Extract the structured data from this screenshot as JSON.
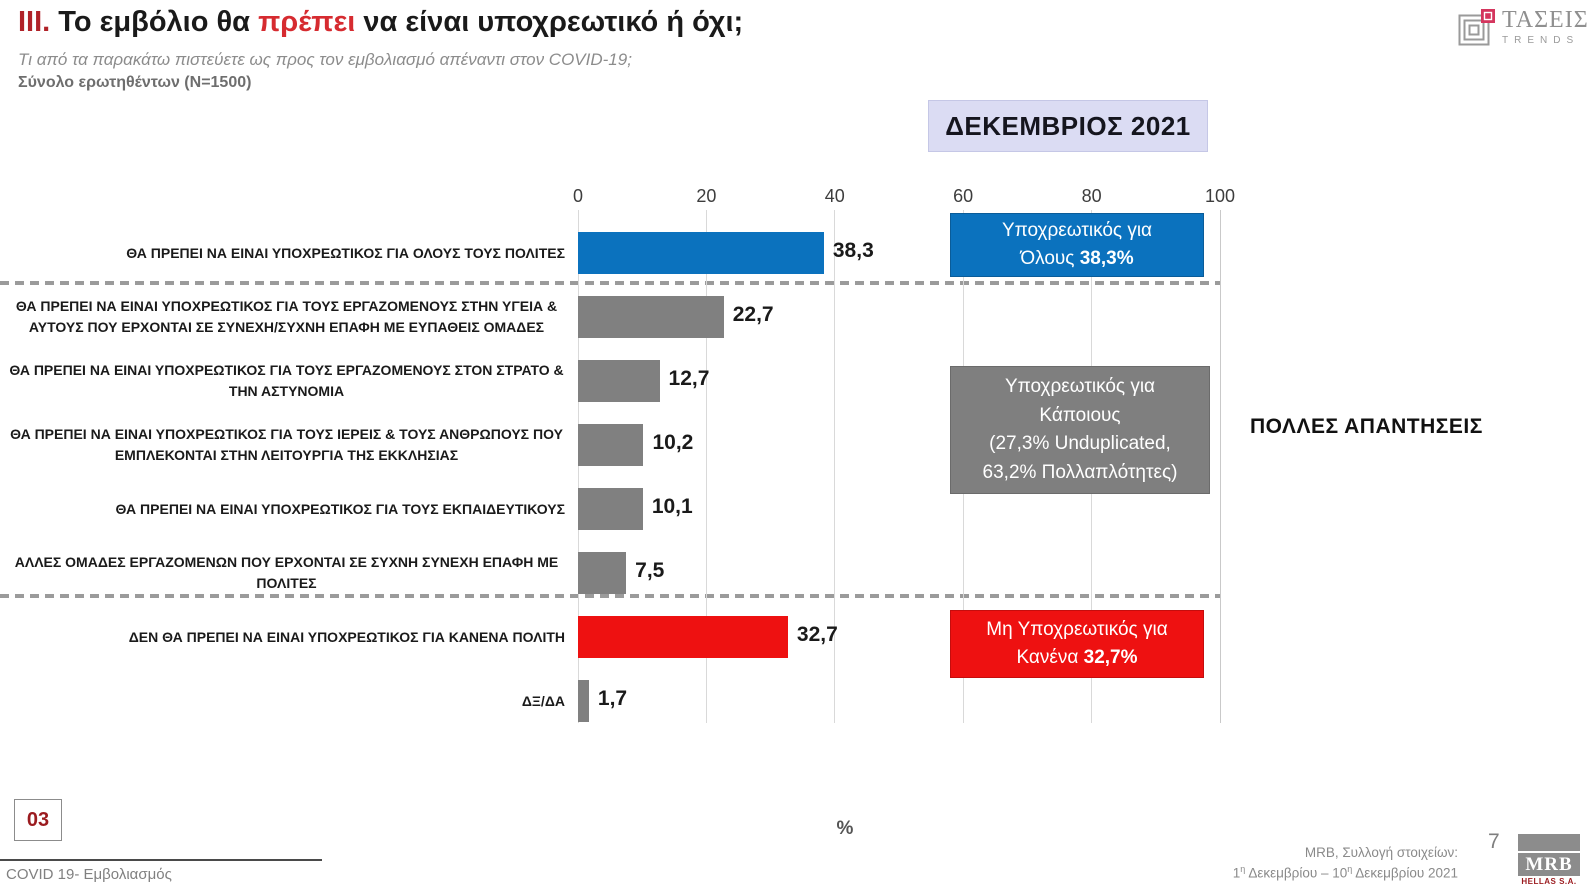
{
  "header": {
    "title_roman": "III.",
    "title_part1": " Το εμβόλιο θα ",
    "title_highlight": "πρέπει",
    "title_part2": " να είναι υποχρεωτικό ή όχι;",
    "subtitle": "Τι από τα παρακάτω πιστεύετε ως προς τον εμβολιασμό απέναντι στον COVID-19;",
    "sample": "Σύνολο ερωτηθέντων (N=1500)"
  },
  "tasis_logo": {
    "name": "ΤΑΣΕΙΣ",
    "sub": "TRENDS"
  },
  "period_label": "ΔΕΚΕΜΒΡΙΟΣ 2021",
  "chart_data": {
    "type": "bar",
    "orientation": "horizontal",
    "xlabel": "%",
    "xlim": [
      0,
      100
    ],
    "x_ticks": [
      0,
      20,
      40,
      60,
      80,
      100
    ],
    "grid": true,
    "categories": [
      "ΘΑ ΠΡΕΠΕΙ ΝΑ ΕΙΝΑΙ ΥΠΟΧΡΕΩΤΙΚΟΣ ΓΙΑ ΟΛΟΥΣ ΤΟΥΣ ΠΟΛΙΤΕΣ",
      "ΘΑ ΠΡΕΠΕΙ ΝΑ ΕΙΝΑΙ ΥΠΟΧΡΕΩΤΙΚΟΣ ΓΙΑ ΤΟΥΣ ΕΡΓΑΖΟΜΕΝΟΥΣ ΣΤΗΝ ΥΓΕΙΑ & ΑΥΤΟΥΣ ΠΟΥ ΕΡΧΟΝΤΑΙ ΣΕ ΣΥΝΕΧΗ/ΣΥΧΝΗ ΕΠΑΦΗ ΜΕ ΕΥΠΑΘΕΙΣ ΟΜΑΔΕΣ",
      "ΘΑ ΠΡΕΠΕΙ ΝΑ ΕΙΝΑΙ ΥΠΟΧΡΕΩΤΙΚΟΣ ΓΙΑ ΤΟΥΣ ΕΡΓΑΖΟΜΕΝΟΥΣ ΣΤΟΝ ΣΤΡΑΤΟ & ΤΗΝ ΑΣΤΥΝΟΜΙΑ",
      "ΘΑ ΠΡΕΠΕΙ ΝΑ ΕΙΝΑΙ ΥΠΟΧΡΕΩΤΙΚΟΣ ΓΙΑ ΤΟΥΣ ΙΕΡΕΙΣ & ΤΟΥΣ ΑΝΘΡΩΠΟΥΣ ΠΟΥ ΕΜΠΛΕΚΟΝΤΑΙ ΣΤΗΝ ΛΕΙΤΟΥΡΓΙΑ ΤΗΣ ΕΚΚΛΗΣΙΑΣ",
      "ΘΑ ΠΡΕΠΕΙ ΝΑ ΕΙΝΑΙ ΥΠΟΧΡΕΩΤΙΚΟΣ ΓΙΑ ΤΟΥΣ ΕΚΠΑΙΔΕΥΤΙΚΟΥΣ",
      "ΑΛΛΕΣ ΟΜΑΔΕΣ ΕΡΓΑΖΟΜΕΝΩΝ ΠΟΥ ΕΡΧΟΝΤΑΙ ΣΕ ΣΥΧΝΗ ΣΥΝΕΧΗ ΕΠΑΦΗ ΜΕ ΠΟΛΙΤΕΣ",
      "ΔΕΝ ΘΑ ΠΡΕΠΕΙ ΝΑ ΕΙΝΑΙ ΥΠΟΧΡΕΩΤΙΚΟΣ ΓΙΑ ΚΑΝΕΝΑ ΠΟΛΙΤΗ",
      "ΔΞ/ΔΑ"
    ],
    "values": [
      38.3,
      22.7,
      12.7,
      10.2,
      10.1,
      7.5,
      32.7,
      1.7
    ],
    "value_labels": [
      "38,3",
      "22,7",
      "12,7",
      "10,2",
      "10,1",
      "7,5",
      "32,7",
      "1,7"
    ],
    "bar_colors": [
      "#0b72be",
      "#808080",
      "#808080",
      "#808080",
      "#808080",
      "#808080",
      "#ee1111",
      "#808080"
    ]
  },
  "callouts": {
    "mandatory_all": {
      "line1": "Υποχρεωτικός για",
      "line2": "Όλους ",
      "value": "38,3%",
      "bg": "#0b72be"
    },
    "mandatory_some": {
      "line1": "Υποχρεωτικός για",
      "line2": "Κάποιους",
      "line3": "(27,3% Unduplicated,",
      "line4": "63,2% Πολλαπλότητες)",
      "bg": "#7f7f7f"
    },
    "not_mandatory": {
      "line1": "Μη Υποχρεωτικός για",
      "line2": "Κανένα ",
      "value": "32,7%",
      "bg": "#ee1111"
    }
  },
  "annotations": {
    "multiple_answers": "ΠΟΛΛΕΣ ΑΠΑΝΤΗΣΕΙΣ",
    "axis_unit": "%"
  },
  "footer": {
    "section_number": "03",
    "footer_label": "COVID 19- Εμβολιασμός",
    "source_line1": "MRB, Συλλογή στοιχείων:",
    "source_prefix": "1",
    "source_sup1": "η",
    "source_mid": " Δεκεμβρίου – 10",
    "source_sup2": "η",
    "source_end": " Δεκεμβρίου 2021",
    "page_number": "7",
    "mrb_logo": "MRB",
    "mrb_sub": "HELLAS S.A."
  }
}
